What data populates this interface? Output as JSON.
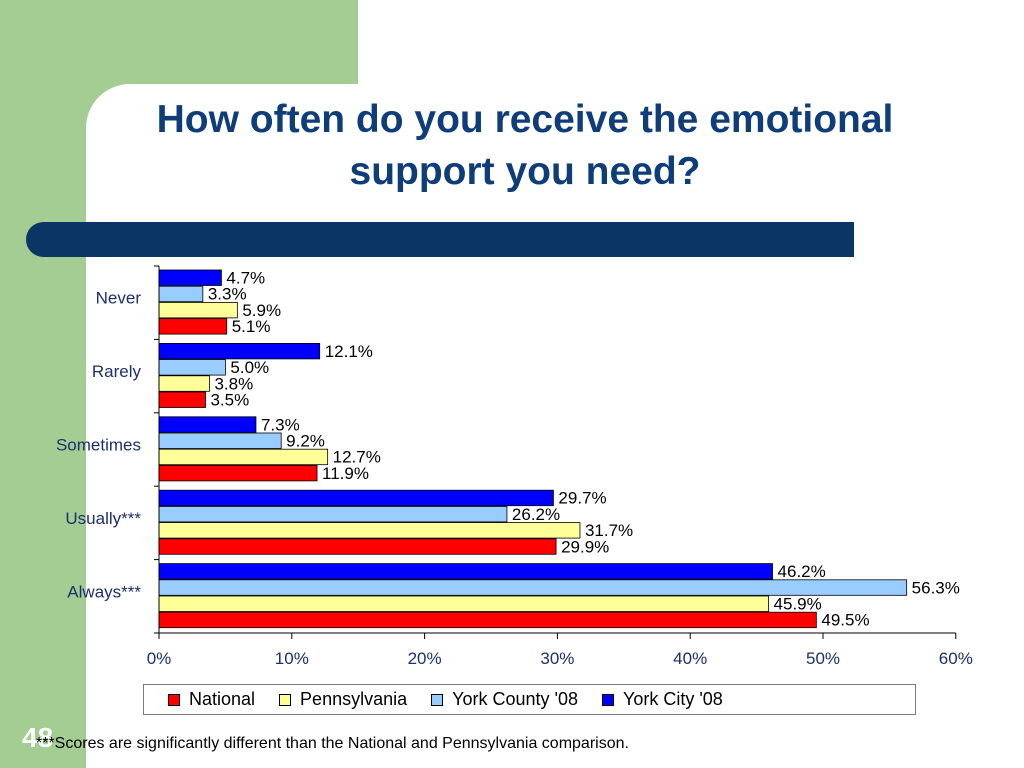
{
  "slide": {
    "title": "How often do you receive the emotional support you need?",
    "number": "48",
    "footnote": "***Scores are significantly different than the National and Pennsylvania comparison."
  },
  "colors": {
    "green_panel": "#a3cd93",
    "title_text": "#0e3d7a",
    "title_bar": "#0a3564"
  },
  "chart_data": {
    "type": "bar",
    "orientation": "horizontal",
    "categories": [
      "Never",
      "Rarely",
      "Sometimes",
      "Usually***",
      "Always***"
    ],
    "series": [
      {
        "name": "National",
        "color": "#ff0000",
        "values": [
          5.1,
          3.5,
          11.9,
          29.9,
          49.5
        ],
        "labels": [
          "5.1%",
          "3.5%",
          "11.9%",
          "29.9%",
          "49.5%"
        ]
      },
      {
        "name": "Pennsylvania",
        "color": "#ffff99",
        "values": [
          5.9,
          3.8,
          12.7,
          31.7,
          45.9
        ],
        "labels": [
          "5.9%",
          "3.8%",
          "12.7%",
          "31.7%",
          "45.9%"
        ]
      },
      {
        "name": "York County '08",
        "color": "#99ccff",
        "values": [
          3.3,
          5.0,
          9.2,
          26.2,
          56.3
        ],
        "labels": [
          "3.3%",
          "5.0%",
          "9.2%",
          "26.2%",
          "56.3%"
        ]
      },
      {
        "name": "York City '08",
        "color": "#0000ff",
        "values": [
          4.7,
          12.1,
          7.3,
          29.7,
          46.2
        ],
        "labels": [
          "4.7%",
          "12.1%",
          "7.3%",
          "29.7%",
          "46.2%"
        ]
      }
    ],
    "xlim": [
      0,
      60
    ],
    "xticks": [
      "0%",
      "10%",
      "20%",
      "30%",
      "40%",
      "50%",
      "60%"
    ],
    "legend_position": "bottom",
    "grid": false
  }
}
